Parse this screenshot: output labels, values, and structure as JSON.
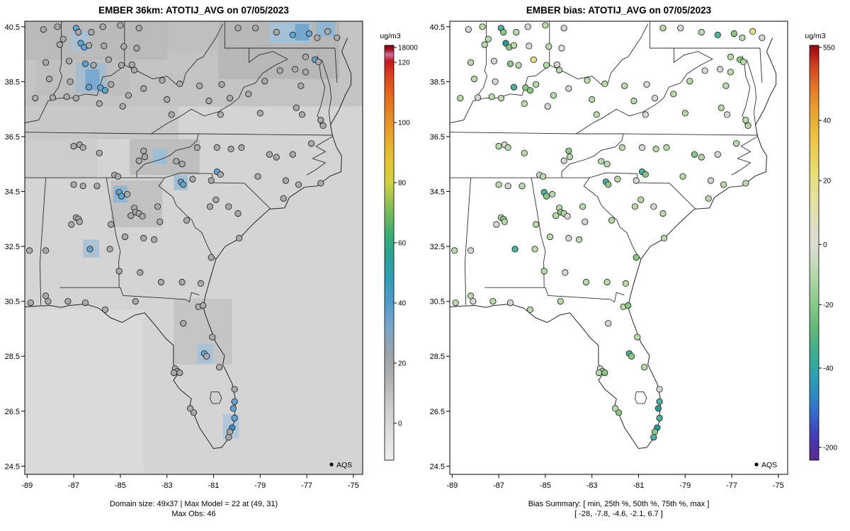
{
  "chart_data": [
    {
      "type": "scatter",
      "subtype": "raster-map-scatter",
      "panel": "model",
      "title": "EMBER 36km: ATOTIJ_AVG on 07/05/2023",
      "captions": [
        "Domain size: 49x37 | Max Model = 22 at (49, 31)",
        "Max Obs: 46"
      ],
      "legend": "AQS",
      "domain_size": "49x37",
      "max_model": 22,
      "max_model_at": "(49, 31)",
      "max_obs": 46,
      "x_ticks": [
        "-89",
        "-87",
        "-85",
        "-83",
        "-81",
        "-79",
        "-77",
        "-75"
      ],
      "y_ticks": [
        "24.5",
        "26.5",
        "28.5",
        "30.5",
        "32.5",
        "34.5",
        "36.5",
        "38.5",
        "40.5"
      ],
      "xlim": [
        -89.1,
        -74.6
      ],
      "ylim": [
        24.2,
        40.7
      ],
      "colorbar": {
        "unit": "ug/m3",
        "top_label": "18000",
        "ticks": [
          [
            "120",
            0.959
          ],
          [
            "100",
            0.814
          ],
          [
            "80",
            0.669
          ],
          [
            "60",
            0.524
          ],
          [
            "40",
            0.379
          ],
          [
            "20",
            0.234
          ],
          [
            "0",
            0.089
          ]
        ],
        "stops": [
          [
            0.0,
            "#ececec"
          ],
          [
            0.06,
            "#e0e0e0"
          ],
          [
            0.12,
            "#cfcfcf"
          ],
          [
            0.2,
            "#b0b0b0"
          ],
          [
            0.26,
            "#98a2aa"
          ],
          [
            0.32,
            "#7aa6c8"
          ],
          [
            0.38,
            "#4f9bcd"
          ],
          [
            0.44,
            "#2e9eb5"
          ],
          [
            0.5,
            "#2aa392"
          ],
          [
            0.55,
            "#3fae6e"
          ],
          [
            0.61,
            "#86bf56"
          ],
          [
            0.67,
            "#d2d23f"
          ],
          [
            0.73,
            "#e6c133"
          ],
          [
            0.8,
            "#e89a28"
          ],
          [
            0.87,
            "#e4711f"
          ],
          [
            0.93,
            "#d8401b"
          ],
          [
            0.962,
            "#c01820"
          ],
          [
            0.978,
            "#cf6f9e"
          ],
          [
            0.99,
            "#9c0f1c"
          ],
          [
            1.0,
            "#7a0a14"
          ]
        ]
      }
    },
    {
      "type": "scatter",
      "subtype": "map-scatter",
      "panel": "bias",
      "title": "EMBER bias: ATOTIJ_AVG on 07/05/2023",
      "captions": [
        "Bias Summary: [ min, 25th %, 50th %, 75th %, max ]",
        "[ -28,  -7.8,  -4.6,  -2.1,  6.7 ]"
      ],
      "legend": "AQS",
      "bias_summary": {
        "min": -28,
        "p25": -7.8,
        "p50": -4.6,
        "p75": -2.1,
        "max": 6.7
      },
      "x_ticks": [
        "-89",
        "-87",
        "-85",
        "-83",
        "-81",
        "-79",
        "-77",
        "-75"
      ],
      "y_ticks": [
        "24.5",
        "26.5",
        "28.5",
        "30.5",
        "32.5",
        "34.5",
        "36.5",
        "38.5",
        "40.5"
      ],
      "xlim": [
        -89.1,
        -74.6
      ],
      "ylim": [
        24.2,
        40.7
      ],
      "colorbar": {
        "unit": "ug/m3",
        "top_label": "550",
        "ticks": [
          [
            "40",
            0.819
          ],
          [
            "20",
            0.674
          ],
          [
            "0",
            0.52
          ],
          [
            "-20",
            0.375
          ],
          [
            "-40",
            0.222
          ],
          [
            "-200",
            0.031
          ]
        ],
        "stops": [
          [
            0.0,
            "#5a2a88"
          ],
          [
            0.05,
            "#4638b0"
          ],
          [
            0.1,
            "#3a5fc8"
          ],
          [
            0.15,
            "#2f86c4"
          ],
          [
            0.2,
            "#2fa0ae"
          ],
          [
            0.26,
            "#3fae8e"
          ],
          [
            0.32,
            "#62b977"
          ],
          [
            0.38,
            "#8cc98c"
          ],
          [
            0.45,
            "#b8d9ae"
          ],
          [
            0.52,
            "#dcdcd4"
          ],
          [
            0.58,
            "#e0e0bc"
          ],
          [
            0.645,
            "#e6e296"
          ],
          [
            0.71,
            "#e8d968"
          ],
          [
            0.78,
            "#e9c246"
          ],
          [
            0.845,
            "#e8a132"
          ],
          [
            0.9,
            "#e0742a"
          ],
          [
            0.95,
            "#cc4420"
          ],
          [
            0.98,
            "#b01c1a"
          ],
          [
            1.0,
            "#8a0f12"
          ]
        ]
      }
    }
  ],
  "palettes": {
    "model": {
      "g": "#a9a9a9",
      "G": "#c2c2c2",
      "b": "#63a3cc",
      "B": "#3f8fc4"
    },
    "bias": {
      "g": "#b9d8ab",
      "G": "#8cc788",
      "t": "#4fae9e",
      "T": "#2f9890",
      "n": "#d6d6d6",
      "w": "#e4e6df",
      "y": "#e6df8d"
    }
  },
  "raster_base": "#d4d4d4",
  "raster_cells": [
    [
      -89.1,
      40.7,
      -74.6,
      37.6,
      "#c3c3c3"
    ],
    [
      -89.1,
      40.7,
      -83.0,
      39.3,
      "#bababa"
    ],
    [
      -88.6,
      39.3,
      -84.6,
      38.0,
      "#bfbfbf"
    ],
    [
      -80.8,
      40.7,
      -75.6,
      38.6,
      "#b7b7b7"
    ],
    [
      -83.0,
      40.7,
      -80.8,
      39.6,
      "#bfbfbf"
    ],
    [
      -86.9,
      39.2,
      -85.6,
      38.1,
      "#a6bccd"
    ],
    [
      -86.5,
      38.95,
      -85.9,
      38.2,
      "#79a9ce"
    ],
    [
      -87.1,
      40.35,
      -86.3,
      39.6,
      "#abc1d3"
    ],
    [
      -78.6,
      40.7,
      -76.8,
      39.9,
      "#a6c0d5"
    ],
    [
      -77.5,
      40.6,
      -76.9,
      40.0,
      "#74a7ce"
    ],
    [
      -76.6,
      40.7,
      -75.8,
      40.15,
      "#90b6d1"
    ],
    [
      -89.1,
      37.6,
      -82.5,
      36.4,
      "#c8c8c8"
    ],
    [
      -89.1,
      36.4,
      -86.0,
      35.0,
      "#cccccc"
    ],
    [
      -84.6,
      36.4,
      -81.6,
      35.1,
      "#bdbdbd"
    ],
    [
      -83.6,
      36.05,
      -83.0,
      35.5,
      "#9ebed5"
    ],
    [
      -85.4,
      34.9,
      -83.2,
      33.2,
      "#c1c1c1"
    ],
    [
      -85.3,
      34.7,
      -84.7,
      34.1,
      "#92b7d3"
    ],
    [
      -82.7,
      35.1,
      -82.1,
      34.55,
      "#a4bed3"
    ],
    [
      -86.6,
      32.75,
      -85.9,
      32.1,
      "#adc3d5"
    ],
    [
      -82.7,
      30.6,
      -80.2,
      28.2,
      "#c5c5c5"
    ],
    [
      -81.7,
      28.95,
      -81.0,
      28.25,
      "#aac1d5"
    ],
    [
      -80.6,
      26.4,
      -79.9,
      25.5,
      "#b2c6d7"
    ],
    [
      -89.1,
      30.2,
      -84.0,
      24.2,
      "#dadada"
    ]
  ],
  "stations": [
    [
      -88.3,
      40.4,
      "g",
      "n"
    ],
    [
      -87.7,
      40.5,
      "g",
      "g"
    ],
    [
      -87.45,
      40.05,
      "g",
      "g"
    ],
    [
      -86.9,
      40.45,
      "b",
      "t"
    ],
    [
      -86.8,
      40.3,
      "g",
      "G"
    ],
    [
      -86.25,
      40.3,
      "g",
      "g"
    ],
    [
      -85.75,
      40.5,
      "g",
      "n"
    ],
    [
      -85.0,
      40.55,
      "g",
      "g"
    ],
    [
      -84.2,
      40.45,
      "g",
      "n"
    ],
    [
      -87.6,
      39.85,
      "g",
      "g"
    ],
    [
      -86.7,
      39.9,
      "b",
      "T"
    ],
    [
      -86.55,
      39.75,
      "b",
      "G"
    ],
    [
      -86.35,
      39.82,
      "g",
      "g"
    ],
    [
      -85.7,
      39.8,
      "g",
      "n"
    ],
    [
      -84.85,
      39.78,
      "g",
      "g"
    ],
    [
      -84.3,
      39.72,
      "g",
      "w"
    ],
    [
      -88.2,
      39.2,
      "g",
      "g"
    ],
    [
      -87.2,
      39.25,
      "g",
      "n"
    ],
    [
      -86.5,
      39.15,
      "b",
      "G"
    ],
    [
      -86.15,
      39.1,
      "g",
      "g"
    ],
    [
      -85.5,
      39.3,
      "g",
      "y"
    ],
    [
      -84.95,
      39.1,
      "g",
      "g"
    ],
    [
      -84.5,
      39.12,
      "g",
      "n"
    ],
    [
      -84.4,
      38.92,
      "g",
      "g"
    ],
    [
      -88.05,
      38.6,
      "g",
      "g"
    ],
    [
      -87.15,
      38.5,
      "g",
      "n"
    ],
    [
      -86.35,
      38.3,
      "b",
      "t"
    ],
    [
      -85.85,
      38.28,
      "b",
      "G"
    ],
    [
      -85.65,
      38.18,
      "b",
      "G"
    ],
    [
      -85.4,
      38.4,
      "g",
      "g"
    ],
    [
      -84.65,
      38.0,
      "g",
      "g"
    ],
    [
      -84.0,
      38.25,
      "g",
      "n"
    ],
    [
      -83.2,
      38.55,
      "g",
      "g"
    ],
    [
      -88.65,
      37.9,
      "g",
      "g"
    ],
    [
      -87.9,
      37.92,
      "g",
      "n"
    ],
    [
      -87.3,
      37.95,
      "g",
      "g"
    ],
    [
      -86.9,
      37.9,
      "g",
      "g"
    ],
    [
      -85.9,
      37.7,
      "g",
      "g"
    ],
    [
      -84.9,
      37.6,
      "g",
      "n"
    ],
    [
      -83.0,
      37.85,
      "g",
      "g"
    ],
    [
      -79.95,
      40.45,
      "g",
      "g"
    ],
    [
      -79.2,
      40.45,
      "g",
      "n"
    ],
    [
      -78.3,
      40.3,
      "g",
      "g"
    ],
    [
      -77.6,
      40.2,
      "b",
      "t"
    ],
    [
      -76.9,
      40.25,
      "b",
      "G"
    ],
    [
      -76.55,
      40.1,
      "g",
      "g"
    ],
    [
      -76.1,
      40.33,
      "g",
      "y"
    ],
    [
      -75.7,
      40.1,
      "g",
      "n"
    ],
    [
      -77.05,
      39.4,
      "g",
      "g"
    ],
    [
      -76.65,
      39.3,
      "b",
      "G"
    ],
    [
      -76.5,
      39.22,
      "g",
      "g"
    ],
    [
      -77.5,
      38.95,
      "g",
      "n"
    ],
    [
      -77.05,
      38.85,
      "g",
      "g"
    ],
    [
      -78.8,
      38.52,
      "g",
      "g"
    ],
    [
      -78.15,
      38.9,
      "g",
      "n"
    ],
    [
      -77.25,
      38.35,
      "g",
      "g"
    ],
    [
      -79.5,
      38.05,
      "g",
      "g"
    ],
    [
      -80.65,
      38.4,
      "g",
      "n"
    ],
    [
      -81.6,
      38.35,
      "g",
      "g"
    ],
    [
      -82.45,
      38.42,
      "g",
      "g"
    ],
    [
      -80.3,
      37.9,
      "g",
      "n"
    ],
    [
      -79.0,
      37.35,
      "g",
      "g"
    ],
    [
      -77.45,
      37.55,
      "g",
      "g"
    ],
    [
      -77.2,
      37.3,
      "g",
      "n"
    ],
    [
      -76.4,
      37.1,
      "g",
      "g"
    ],
    [
      -76.3,
      36.9,
      "g",
      "g"
    ],
    [
      -80.7,
      37.3,
      "g",
      "n"
    ],
    [
      -81.2,
      37.8,
      "g",
      "g"
    ],
    [
      -82.8,
      37.3,
      "g",
      "g"
    ],
    [
      -87.0,
      36.15,
      "g",
      "g"
    ],
    [
      -86.75,
      36.2,
      "g",
      "n"
    ],
    [
      -86.6,
      36.1,
      "g",
      "g"
    ],
    [
      -85.9,
      35.9,
      "g",
      "g"
    ],
    [
      -84.0,
      35.98,
      "g",
      "G"
    ],
    [
      -83.95,
      35.76,
      "g",
      "g"
    ],
    [
      -84.2,
      35.62,
      "g",
      "n"
    ],
    [
      -82.6,
      35.6,
      "g",
      "g"
    ],
    [
      -82.35,
      35.5,
      "g",
      "g"
    ],
    [
      -85.25,
      35.1,
      "g",
      "n"
    ],
    [
      -85.1,
      35.05,
      "g",
      "g"
    ],
    [
      -81.7,
      36.1,
      "g",
      "g"
    ],
    [
      -80.85,
      36.1,
      "g",
      "n"
    ],
    [
      -80.25,
      36.05,
      "g",
      "g"
    ],
    [
      -79.8,
      36.1,
      "g",
      "g"
    ],
    [
      -78.6,
      35.85,
      "g",
      "G"
    ],
    [
      -78.3,
      35.75,
      "g",
      "g"
    ],
    [
      -77.6,
      35.85,
      "g",
      "n"
    ],
    [
      -76.8,
      36.25,
      "g",
      "g"
    ],
    [
      -80.85,
      35.22,
      "b",
      "t"
    ],
    [
      -80.7,
      35.12,
      "g",
      "G"
    ],
    [
      -79.1,
      35.05,
      "g",
      "g"
    ],
    [
      -77.9,
      34.9,
      "g",
      "n"
    ],
    [
      -77.35,
      34.75,
      "g",
      "g"
    ],
    [
      -76.4,
      34.8,
      "g",
      "g"
    ],
    [
      -78.0,
      34.25,
      "g",
      "g"
    ],
    [
      -82.4,
      34.85,
      "b",
      "t"
    ],
    [
      -82.3,
      34.75,
      "b",
      "G"
    ],
    [
      -81.9,
      34.95,
      "g",
      "g"
    ],
    [
      -81.1,
      34.9,
      "g",
      "n"
    ],
    [
      -80.9,
      34.2,
      "g",
      "g"
    ],
    [
      -81.15,
      33.95,
      "g",
      "g"
    ],
    [
      -80.35,
      33.95,
      "g",
      "n"
    ],
    [
      -79.95,
      33.7,
      "g",
      "g"
    ],
    [
      -79.9,
      32.8,
      "g",
      "g"
    ],
    [
      -85.05,
      34.47,
      "b",
      "t"
    ],
    [
      -84.95,
      34.33,
      "b",
      "G"
    ],
    [
      -84.7,
      34.4,
      "g",
      "g"
    ],
    [
      -84.4,
      33.9,
      "g",
      "g"
    ],
    [
      -84.35,
      33.75,
      "g",
      "G"
    ],
    [
      -84.2,
      33.7,
      "g",
      "g"
    ],
    [
      -84.05,
      33.6,
      "g",
      "n"
    ],
    [
      -84.55,
      33.62,
      "g",
      "g"
    ],
    [
      -83.4,
      33.95,
      "g",
      "g"
    ],
    [
      -83.3,
      33.4,
      "g",
      "n"
    ],
    [
      -82.15,
      33.45,
      "g",
      "g"
    ],
    [
      -84.8,
      32.85,
      "g",
      "g"
    ],
    [
      -84.0,
      32.8,
      "g",
      "n"
    ],
    [
      -83.55,
      32.75,
      "g",
      "g"
    ],
    [
      -85.05,
      31.6,
      "g",
      "g"
    ],
    [
      -84.15,
      31.55,
      "g",
      "n"
    ],
    [
      -83.25,
      31.2,
      "g",
      "g"
    ],
    [
      -82.35,
      31.2,
      "g",
      "g"
    ],
    [
      -81.1,
      32.1,
      "g",
      "G"
    ],
    [
      -81.55,
      31.15,
      "g",
      "g"
    ],
    [
      -87.0,
      34.75,
      "g",
      "g"
    ],
    [
      -86.6,
      34.7,
      "g",
      "n"
    ],
    [
      -86.0,
      34.7,
      "g",
      "g"
    ],
    [
      -86.9,
      33.55,
      "g",
      "g"
    ],
    [
      -86.8,
      33.5,
      "g",
      "G"
    ],
    [
      -86.75,
      33.4,
      "g",
      "g"
    ],
    [
      -87.1,
      33.3,
      "g",
      "n"
    ],
    [
      -85.4,
      33.3,
      "g",
      "g"
    ],
    [
      -86.3,
      32.4,
      "b",
      "t"
    ],
    [
      -85.45,
      32.4,
      "g",
      "g"
    ],
    [
      -88.2,
      32.35,
      "g",
      "n"
    ],
    [
      -88.9,
      32.35,
      "g",
      "g"
    ],
    [
      -88.2,
      30.7,
      "g",
      "g"
    ],
    [
      -88.1,
      30.5,
      "g",
      "n"
    ],
    [
      -88.85,
      30.45,
      "g",
      "g"
    ],
    [
      -87.25,
      30.5,
      "g",
      "g"
    ],
    [
      -86.5,
      30.45,
      "g",
      "n"
    ],
    [
      -85.65,
      30.2,
      "g",
      "g"
    ],
    [
      -84.35,
      30.5,
      "g",
      "g"
    ],
    [
      -82.3,
      29.7,
      "g",
      "n"
    ],
    [
      -81.65,
      30.3,
      "g",
      "g"
    ],
    [
      -81.45,
      30.35,
      "g",
      "G"
    ],
    [
      -81.05,
      29.2,
      "g",
      "g"
    ],
    [
      -81.4,
      28.6,
      "b",
      "t"
    ],
    [
      -81.3,
      28.5,
      "g",
      "G"
    ],
    [
      -80.75,
      28.1,
      "g",
      "g"
    ],
    [
      -82.65,
      28.05,
      "g",
      "n"
    ],
    [
      -82.55,
      27.95,
      "g",
      "g"
    ],
    [
      -82.45,
      27.9,
      "g",
      "G"
    ],
    [
      -82.7,
      27.9,
      "g",
      "g"
    ],
    [
      -81.85,
      26.45,
      "g",
      "G"
    ],
    [
      -82.0,
      26.6,
      "g",
      "g"
    ],
    [
      -80.1,
      27.3,
      "g",
      "n"
    ],
    [
      -80.1,
      26.85,
      "b",
      "t"
    ],
    [
      -80.15,
      26.6,
      "b",
      "T"
    ],
    [
      -80.1,
      26.25,
      "b",
      "t"
    ],
    [
      -80.2,
      25.9,
      "B",
      "T"
    ],
    [
      -80.3,
      25.75,
      "g",
      "G"
    ],
    [
      -80.35,
      25.55,
      "g",
      "t"
    ]
  ]
}
